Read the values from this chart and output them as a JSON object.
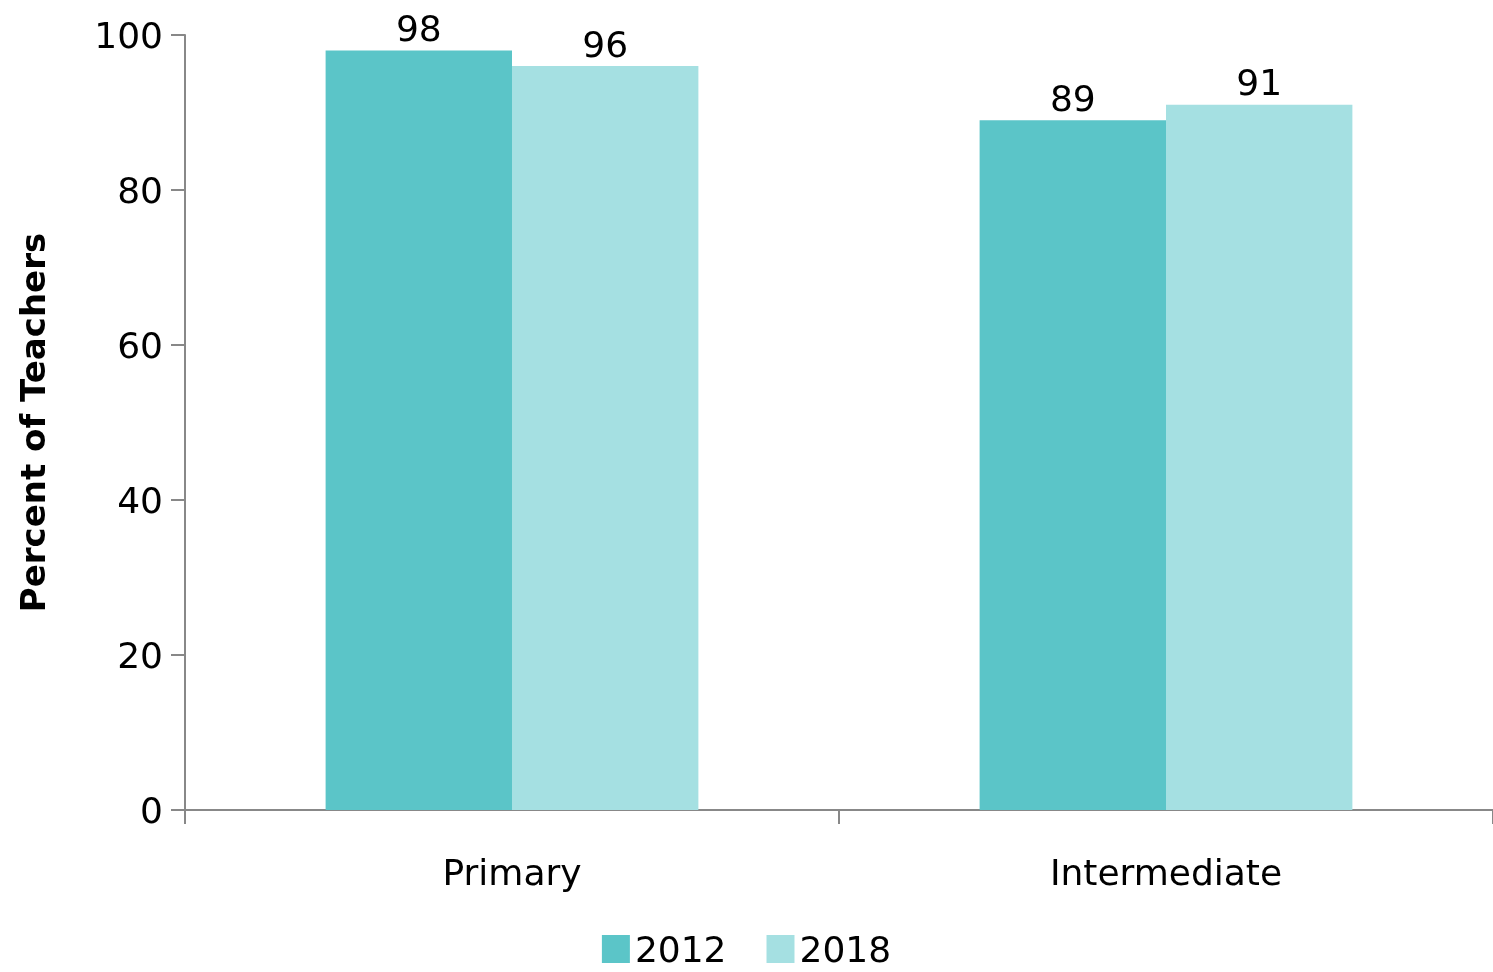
{
  "chart_data": {
    "type": "bar",
    "ylabel": "Percent of Teachers",
    "categories": [
      "Primary",
      "Intermediate"
    ],
    "series": [
      {
        "name": "2012",
        "color": "#5bc5c8",
        "values": [
          98,
          89
        ]
      },
      {
        "name": "2018",
        "color": "#a5e0e2",
        "values": [
          96,
          91
        ]
      }
    ],
    "ylim": [
      0,
      100
    ],
    "yticks": [
      0,
      20,
      40,
      60,
      80,
      100
    ],
    "grid": false,
    "legend": "bottom",
    "data_labels": true
  }
}
